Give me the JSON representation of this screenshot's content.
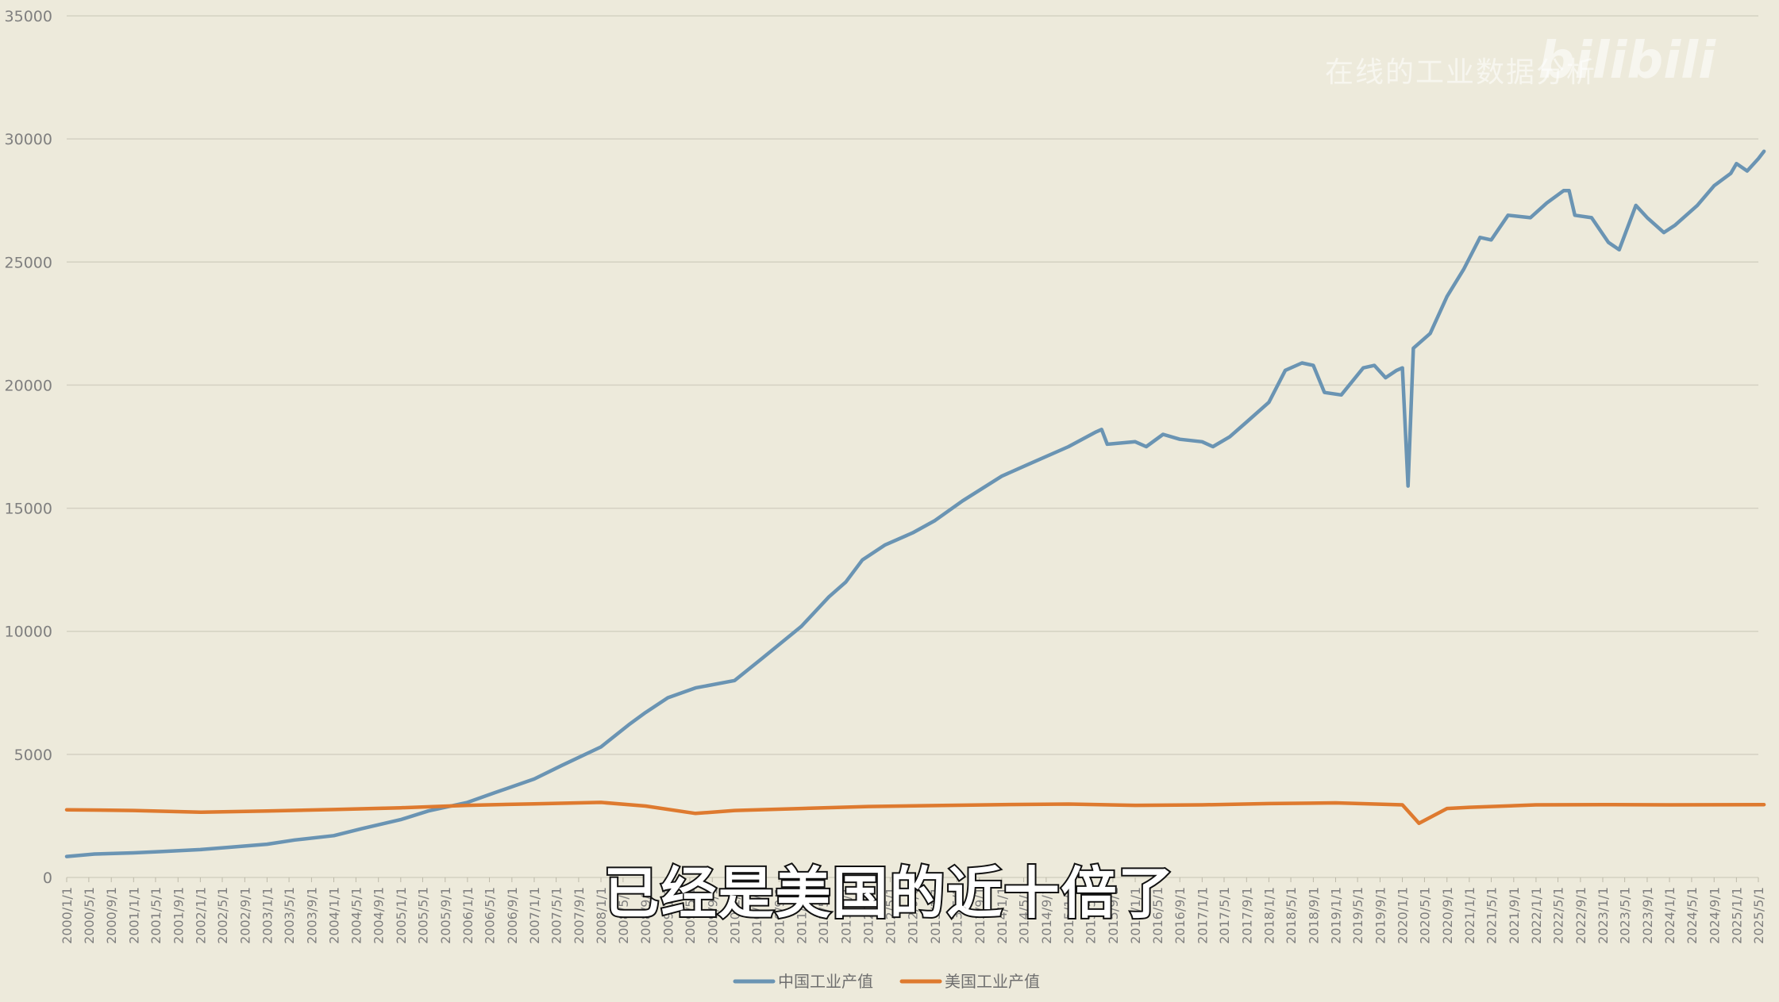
{
  "watermark": {
    "text": "在线的工业数据分析",
    "logo": "bilibili"
  },
  "subtitle": "已经是美国的近十倍了",
  "chart_data": {
    "type": "line",
    "title": "",
    "xlabel": "",
    "ylabel": "",
    "ylim": [
      0,
      35000
    ],
    "yticks": [
      0,
      5000,
      10000,
      15000,
      20000,
      25000,
      30000,
      35000
    ],
    "grid": true,
    "legend_position": "bottom",
    "x_tick_labels": [
      "2000/1/1",
      "2000/5/1",
      "2000/9/1",
      "2001/1/1",
      "2001/5/1",
      "2001/9/1",
      "2002/1/1",
      "2002/5/1",
      "2002/9/1",
      "2003/1/1",
      "2003/5/1",
      "2003/9/1",
      "2004/1/1",
      "2004/5/1",
      "2004/9/1",
      "2005/1/1",
      "2005/5/1",
      "2005/9/1",
      "2006/1/1",
      "2006/5/1",
      "2006/9/1",
      "2007/1/1",
      "2007/5/1",
      "2007/9/1",
      "2008/1/1",
      "2008/5/1",
      "2008/9/1",
      "2009/1/1",
      "2009/5/1",
      "2009/9/1",
      "2010/1/1",
      "2010/5/1",
      "2010/9/1",
      "2011/1/1",
      "2011/5/1",
      "2011/9/1",
      "2012/1/1",
      "2012/5/1",
      "2012/9/1",
      "2013/1/1",
      "2013/5/1",
      "2013/9/1",
      "2014/1/1",
      "2014/5/1",
      "2014/9/1",
      "2015/1/1",
      "2015/5/1",
      "2015/9/1",
      "2016/1/1",
      "2016/5/1",
      "2016/9/1",
      "2017/1/1",
      "2017/5/1",
      "2017/9/1",
      "2018/1/1",
      "2018/5/1",
      "2018/9/1",
      "2019/1/1",
      "2019/5/1",
      "2019/9/1",
      "2020/1/1",
      "2020/5/1",
      "2020/9/1",
      "2021/1/1",
      "2021/5/1",
      "2021/9/1",
      "2022/1/1",
      "2022/5/1",
      "2022/9/1",
      "2023/1/1",
      "2023/5/1",
      "2023/9/1",
      "2024/1/1",
      "2024/5/1",
      "2024/9/1",
      "2025/1/1",
      "2025/5/1"
    ],
    "x_range": [
      "2000/1/1",
      "2025/5/1"
    ],
    "series": [
      {
        "name": "中国工业产值",
        "color": "#6a94b3",
        "points": [
          [
            "2000/1/1",
            850
          ],
          [
            "2000/6/1",
            950
          ],
          [
            "2001/1/1",
            1000
          ],
          [
            "2001/6/1",
            1050
          ],
          [
            "2002/1/1",
            1130
          ],
          [
            "2002/6/1",
            1220
          ],
          [
            "2003/1/1",
            1350
          ],
          [
            "2003/6/1",
            1520
          ],
          [
            "2004/1/1",
            1700
          ],
          [
            "2004/6/1",
            1980
          ],
          [
            "2005/1/1",
            2350
          ],
          [
            "2005/6/1",
            2700
          ],
          [
            "2006/1/1",
            3050
          ],
          [
            "2006/6/1",
            3450
          ],
          [
            "2007/1/1",
            4000
          ],
          [
            "2007/6/1",
            4550
          ],
          [
            "2008/1/1",
            5300
          ],
          [
            "2008/6/1",
            6200
          ],
          [
            "2008/9/1",
            6700
          ],
          [
            "2009/1/1",
            7300
          ],
          [
            "2009/6/1",
            7700
          ],
          [
            "2010/1/1",
            8000
          ],
          [
            "2010/6/1",
            8900
          ],
          [
            "2011/1/1",
            10200
          ],
          [
            "2011/6/1",
            11400
          ],
          [
            "2011/9/1",
            12000
          ],
          [
            "2011/12/1",
            12900
          ],
          [
            "2012/4/1",
            13500
          ],
          [
            "2012/9/1",
            14000
          ],
          [
            "2013/1/1",
            14500
          ],
          [
            "2013/6/1",
            15300
          ],
          [
            "2014/1/1",
            16300
          ],
          [
            "2014/6/1",
            16800
          ],
          [
            "2015/1/1",
            17500
          ],
          [
            "2015/6/1",
            18100
          ],
          [
            "2015/7/1",
            18200
          ],
          [
            "2015/8/1",
            17600
          ],
          [
            "2016/1/1",
            17700
          ],
          [
            "2016/3/1",
            17500
          ],
          [
            "2016/6/1",
            18000
          ],
          [
            "2016/9/1",
            17800
          ],
          [
            "2017/1/1",
            17700
          ],
          [
            "2017/3/1",
            17500
          ],
          [
            "2017/6/1",
            17900
          ],
          [
            "2017/9/1",
            18500
          ],
          [
            "2018/1/1",
            19300
          ],
          [
            "2018/4/1",
            20600
          ],
          [
            "2018/7/1",
            20900
          ],
          [
            "2018/9/1",
            20800
          ],
          [
            "2018/11/1",
            19700
          ],
          [
            "2019/2/1",
            19600
          ],
          [
            "2019/6/1",
            20700
          ],
          [
            "2019/8/1",
            20800
          ],
          [
            "2019/10/1",
            20300
          ],
          [
            "2019/12/1",
            20600
          ],
          [
            "2020/1/1",
            20700
          ],
          [
            "2020/2/1",
            15900
          ],
          [
            "2020/3/1",
            21500
          ],
          [
            "2020/6/1",
            22100
          ],
          [
            "2020/9/1",
            23600
          ],
          [
            "2020/12/1",
            24700
          ],
          [
            "2021/3/1",
            26000
          ],
          [
            "2021/5/1",
            25900
          ],
          [
            "2021/8/1",
            26900
          ],
          [
            "2021/12/1",
            26800
          ],
          [
            "2022/3/1",
            27400
          ],
          [
            "2022/6/1",
            27900
          ],
          [
            "2022/7/1",
            27900
          ],
          [
            "2022/8/1",
            26900
          ],
          [
            "2022/11/1",
            26800
          ],
          [
            "2023/2/1",
            25800
          ],
          [
            "2023/4/1",
            25500
          ],
          [
            "2023/7/1",
            27300
          ],
          [
            "2023/9/1",
            26800
          ],
          [
            "2023/12/1",
            26200
          ],
          [
            "2024/2/1",
            26500
          ],
          [
            "2024/6/1",
            27300
          ],
          [
            "2024/9/1",
            28100
          ],
          [
            "2024/12/1",
            28600
          ],
          [
            "2025/1/1",
            29000
          ],
          [
            "2025/3/1",
            28700
          ],
          [
            "2025/5/1",
            29200
          ],
          [
            "2025/6/1",
            29500
          ]
        ]
      },
      {
        "name": "美国工业产值",
        "color": "#de7a2f",
        "points": [
          [
            "2000/1/1",
            2750
          ],
          [
            "2001/1/1",
            2720
          ],
          [
            "2002/1/1",
            2650
          ],
          [
            "2003/1/1",
            2700
          ],
          [
            "2004/1/1",
            2760
          ],
          [
            "2005/1/1",
            2830
          ],
          [
            "2006/1/1",
            2930
          ],
          [
            "2007/1/1",
            2990
          ],
          [
            "2008/1/1",
            3050
          ],
          [
            "2008/9/1",
            2900
          ],
          [
            "2009/6/1",
            2600
          ],
          [
            "2010/1/1",
            2720
          ],
          [
            "2011/1/1",
            2800
          ],
          [
            "2012/1/1",
            2880
          ],
          [
            "2013/1/1",
            2920
          ],
          [
            "2014/1/1",
            2960
          ],
          [
            "2015/1/1",
            2980
          ],
          [
            "2016/1/1",
            2930
          ],
          [
            "2017/1/1",
            2950
          ],
          [
            "2018/1/1",
            3000
          ],
          [
            "2019/1/1",
            3030
          ],
          [
            "2020/1/1",
            2950
          ],
          [
            "2020/4/1",
            2200
          ],
          [
            "2020/9/1",
            2800
          ],
          [
            "2021/1/1",
            2850
          ],
          [
            "2022/1/1",
            2950
          ],
          [
            "2023/1/1",
            2960
          ],
          [
            "2024/1/1",
            2950
          ],
          [
            "2025/6/1",
            2960
          ]
        ]
      }
    ]
  }
}
